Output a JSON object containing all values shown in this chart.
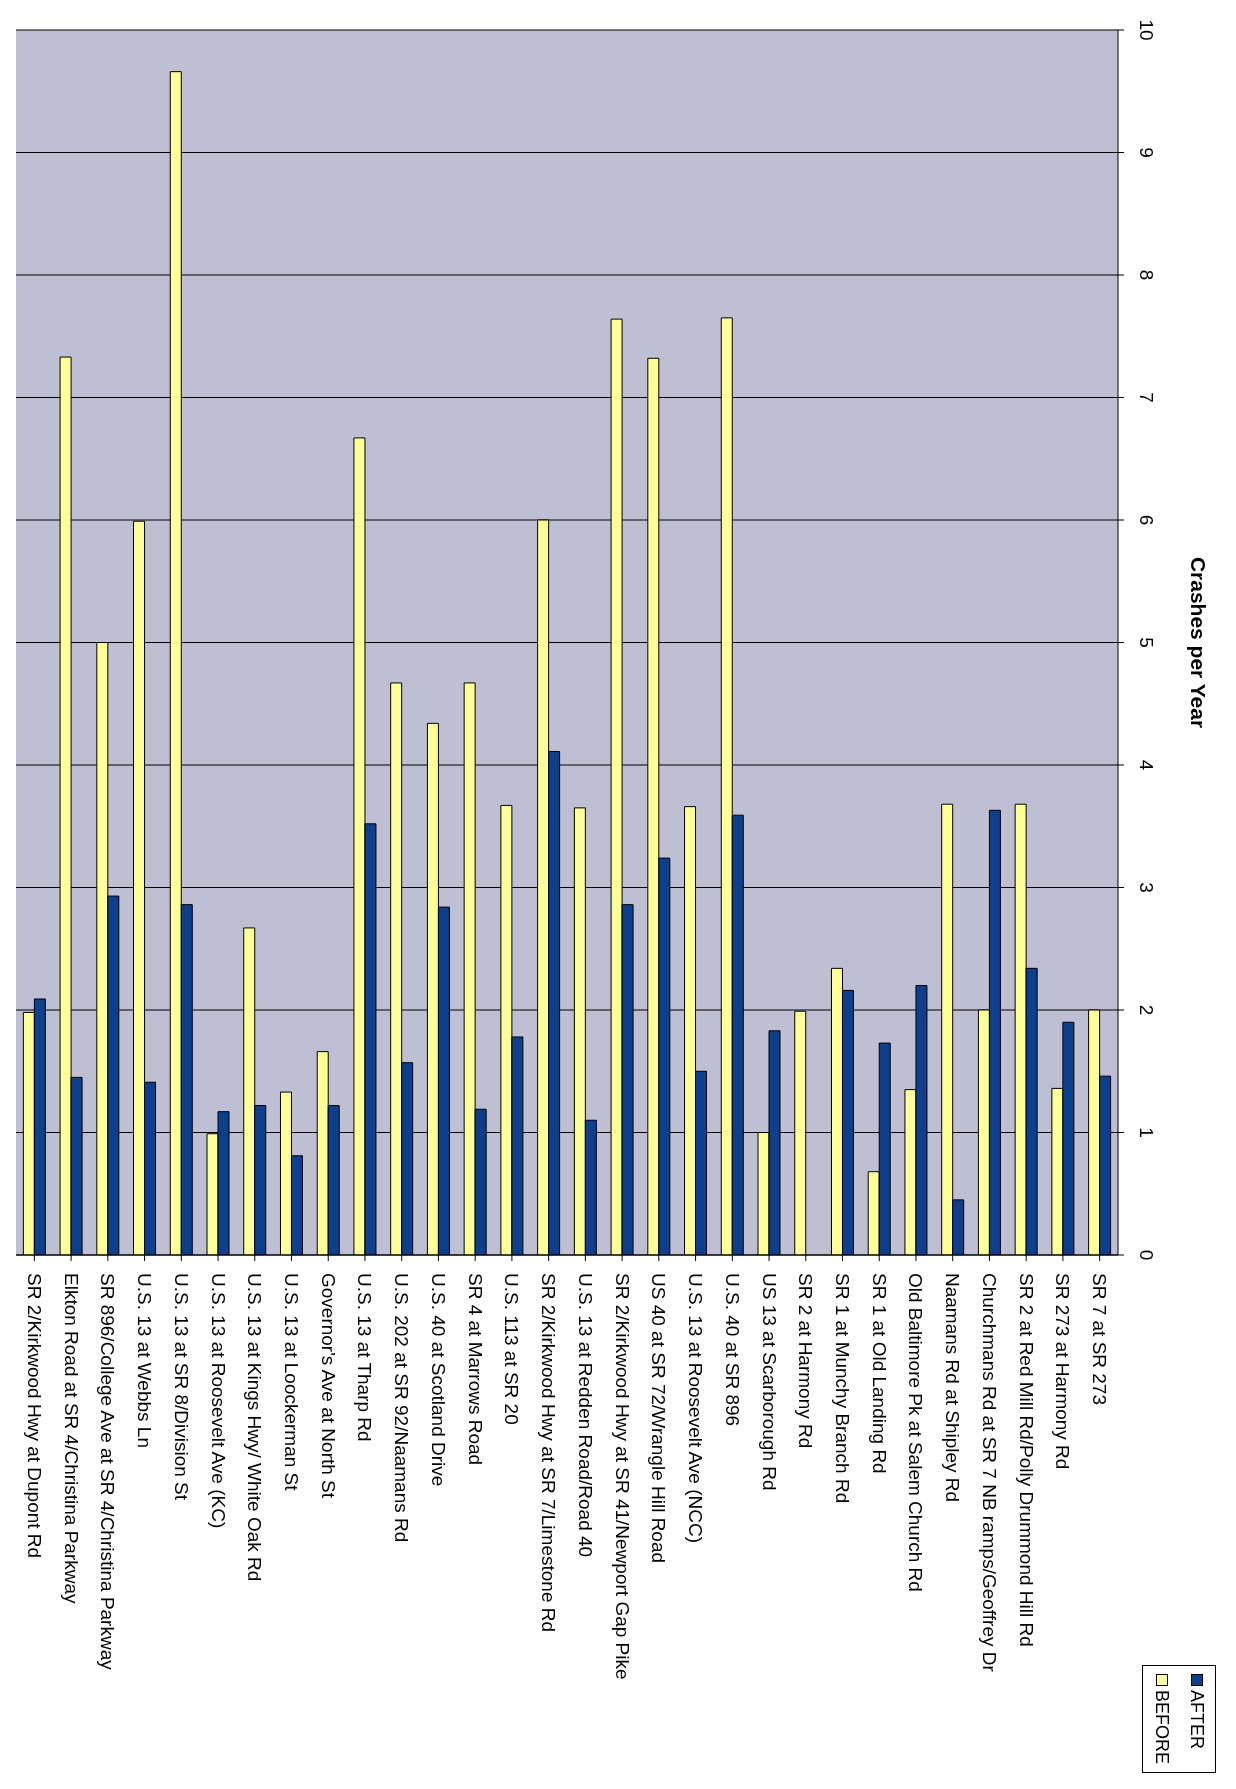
{
  "chart_data": {
    "type": "bar",
    "categories": [
      "SR 2/Kirkwood Hwy at Dupont Rd",
      "Elkton Road at SR 4/Christina Parkway",
      "SR 896/College Ave at SR 4/Christina Parkway",
      "U.S. 13 at Webbs Ln",
      "U.S. 13 at SR 8/Division St",
      "U.S. 13 at Roosevelt Ave (KC)",
      "U.S. 13 at Kings Hwy/ White Oak Rd",
      "U.S. 13 at Loockerman St",
      "Governor's Ave at North St",
      "U.S. 13 at Tharp Rd",
      "U.S. 202 at SR 92/Naamans Rd",
      "U.S. 40 at Scotland Drive",
      "SR 4 at Marrows Road",
      "U.S. 113 at SR 20",
      "SR 2/Kirkwood Hwy at SR 7/Limestone Rd",
      "U.S. 13 at Redden Road/Road 40",
      "SR 2/Kirkwood Hwy at SR 41/Newport Gap Pike",
      "US 40 at SR 72/Wrangle Hill Road",
      "U.S. 13 at Roosevelt Ave (NCC)",
      "U.S. 40 at SR 896",
      "US 13 at Scarborough Rd",
      "SR 2 at Harmony Rd",
      "SR 1 at Munchy Branch Rd",
      "SR 1 at Old Landing Rd",
      "Old Baltimore Pk at Salem Church Rd",
      "Naamans Rd at Shipley Rd",
      "Churchmans Rd at SR 7 NB ramps/Geoffrey Dr",
      "SR 2 at Red Mill Rd/Polly Drummond Hill Rd",
      "SR 273 at Harmony Rd",
      "SR 7 at SR 273"
    ],
    "series": [
      {
        "name": "BEFORE",
        "color": "#ffff99",
        "values": [
          1.98,
          7.33,
          5.0,
          5.99,
          9.66,
          0.99,
          2.67,
          1.33,
          1.66,
          6.67,
          4.67,
          4.34,
          4.67,
          3.67,
          6.0,
          3.65,
          7.64,
          7.32,
          3.66,
          7.65,
          1.0,
          1.99,
          2.34,
          0.68,
          1.35,
          3.68,
          2.0,
          3.68,
          1.36,
          2.0
        ]
      },
      {
        "name": "AFTER",
        "color": "#0d3f8c",
        "values": [
          2.09,
          1.45,
          2.93,
          1.41,
          2.86,
          1.17,
          1.22,
          0.81,
          1.22,
          3.52,
          1.57,
          2.84,
          1.19,
          1.78,
          4.11,
          1.1,
          2.86,
          3.24,
          1.5,
          3.59,
          1.83,
          null,
          2.16,
          1.73,
          2.2,
          0.45,
          3.63,
          2.34,
          1.9,
          1.46
        ]
      }
    ],
    "ylabel": "Crashes per Year",
    "ylim": [
      0,
      10
    ],
    "yticks": [
      0,
      1,
      2,
      3,
      4,
      5,
      6,
      7,
      8,
      9,
      10
    ],
    "grid": "y",
    "legend": "bottom right"
  }
}
